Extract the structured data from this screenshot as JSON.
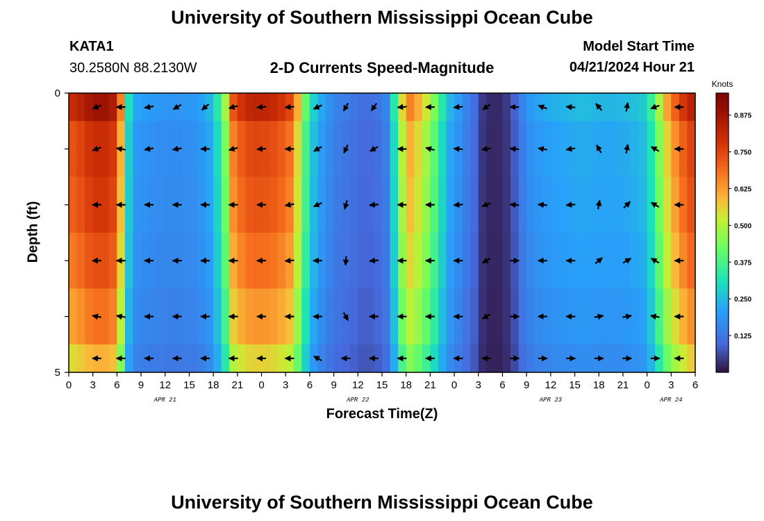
{
  "header": {
    "title": "University of Southern Mississippi Ocean Cube",
    "station": "KATA1",
    "location": "30.2580N  88.2130W",
    "subtitle": "2-D Currents Speed-Magnitude",
    "model_start_label": "Model Start Time",
    "model_start_value": "04/21/2024 Hour 21"
  },
  "footer": {
    "title": "University of Southern Mississippi Ocean Cube"
  },
  "chart_data": {
    "type": "heatmap",
    "title": "2-D Currents Speed-Magnitude",
    "xlabel": "Forecast Time(Z)",
    "ylabel": "Depth (ft)",
    "x_unit": "forecast hour from 04/21 00Z",
    "xlim": [
      0,
      78
    ],
    "ylim": [
      5,
      0
    ],
    "x_ticks": [
      {
        "hour": 0,
        "label": "0"
      },
      {
        "hour": 3,
        "label": "3"
      },
      {
        "hour": 6,
        "label": "6"
      },
      {
        "hour": 9,
        "label": "9"
      },
      {
        "hour": 12,
        "label": "12"
      },
      {
        "hour": 15,
        "label": "15"
      },
      {
        "hour": 18,
        "label": "18"
      },
      {
        "hour": 21,
        "label": "21"
      },
      {
        "hour": 24,
        "label": "0"
      },
      {
        "hour": 27,
        "label": "3"
      },
      {
        "hour": 30,
        "label": "6"
      },
      {
        "hour": 33,
        "label": "9"
      },
      {
        "hour": 36,
        "label": "12"
      },
      {
        "hour": 39,
        "label": "15"
      },
      {
        "hour": 42,
        "label": "18"
      },
      {
        "hour": 45,
        "label": "21"
      },
      {
        "hour": 48,
        "label": "0"
      },
      {
        "hour": 51,
        "label": "3"
      },
      {
        "hour": 54,
        "label": "6"
      },
      {
        "hour": 57,
        "label": "9"
      },
      {
        "hour": 60,
        "label": "12"
      },
      {
        "hour": 63,
        "label": "15"
      },
      {
        "hour": 66,
        "label": "18"
      },
      {
        "hour": 69,
        "label": "21"
      },
      {
        "hour": 72,
        "label": "0"
      },
      {
        "hour": 75,
        "label": "3"
      },
      {
        "hour": 78,
        "label": "6"
      }
    ],
    "y_ticks": [
      {
        "depth": 0,
        "label": "0"
      },
      {
        "depth": 1,
        "label": ""
      },
      {
        "depth": 2,
        "label": ""
      },
      {
        "depth": 3,
        "label": ""
      },
      {
        "depth": 4,
        "label": ""
      },
      {
        "depth": 5,
        "label": "5"
      }
    ],
    "date_labels": [
      {
        "hour": 12,
        "label": "APR 21"
      },
      {
        "hour": 36,
        "label": "APR 22"
      },
      {
        "hour": 60,
        "label": "APR 23"
      },
      {
        "hour": 75,
        "label": "APR 24"
      }
    ],
    "colorbar": {
      "label": "Knots",
      "min": 0.0,
      "max": 0.95,
      "ticks": [
        0.125,
        0.25,
        0.375,
        0.5,
        0.625,
        0.75,
        0.875
      ],
      "tick_labels": [
        "0.125",
        "0.250",
        "0.375",
        "0.500",
        "0.625",
        "0.750",
        "0.875"
      ]
    },
    "depth_levels": [
      0.25,
      1.0,
      2.0,
      3.0,
      4.0,
      4.75
    ],
    "speed_profile": {
      "hours": [
        0,
        1,
        3,
        5,
        6,
        6.5,
        7,
        7.5,
        8,
        10,
        12,
        14,
        16,
        17.5,
        18.5,
        19.5,
        20.5,
        22,
        24,
        26,
        27.5,
        28.5,
        29,
        30,
        31,
        33,
        35,
        36.5,
        37.5,
        38.5,
        39.5,
        40.5,
        41.5,
        42.5,
        43.5,
        45,
        46.5,
        47.5,
        48.5,
        49.5,
        50.5,
        51,
        51.5,
        52,
        53,
        54,
        55,
        55.5,
        56,
        57,
        58,
        60,
        62,
        64,
        66,
        68,
        70,
        71.5,
        72.5,
        73.5,
        74.5,
        76,
        78
      ],
      "speeds": [
        0.72,
        0.74,
        0.8,
        0.8,
        0.75,
        0.6,
        0.42,
        0.28,
        0.2,
        0.18,
        0.17,
        0.17,
        0.18,
        0.22,
        0.3,
        0.44,
        0.66,
        0.74,
        0.75,
        0.73,
        0.68,
        0.55,
        0.45,
        0.3,
        0.22,
        0.14,
        0.12,
        0.1,
        0.1,
        0.11,
        0.14,
        0.3,
        0.5,
        0.6,
        0.55,
        0.45,
        0.3,
        0.22,
        0.18,
        0.14,
        0.1,
        0.06,
        0.04,
        0.03,
        0.02,
        0.03,
        0.05,
        0.08,
        0.12,
        0.16,
        0.19,
        0.21,
        0.22,
        0.23,
        0.22,
        0.22,
        0.23,
        0.25,
        0.32,
        0.44,
        0.56,
        0.68,
        0.78
      ]
    },
    "depth_factors": [
      1.1,
      1.0,
      0.97,
      0.92,
      0.85,
      0.75
    ],
    "arrow_hours": [
      3.5,
      6.5,
      10,
      13.5,
      17,
      20.5,
      24,
      27.5,
      31,
      34.5,
      38,
      41.5,
      45,
      48.5,
      52,
      55.5,
      59,
      62.5,
      66,
      69.5,
      73,
      76
    ],
    "arrow_rows": [
      [
        200,
        180,
        190,
        210,
        220,
        195,
        185,
        185,
        205,
        240,
        235,
        185,
        180,
        185,
        215,
        180,
        160,
        175,
        130,
        80,
        200,
        180
      ],
      [
        200,
        170,
        190,
        190,
        180,
        195,
        185,
        180,
        210,
        245,
        210,
        180,
        165,
        175,
        190,
        175,
        170,
        190,
        120,
        80,
        150,
        180
      ],
      [
        180,
        180,
        180,
        180,
        180,
        180,
        180,
        190,
        205,
        255,
        185,
        180,
        180,
        185,
        200,
        175,
        175,
        185,
        80,
        45,
        150,
        180
      ],
      [
        180,
        180,
        180,
        180,
        180,
        180,
        180,
        185,
        180,
        265,
        185,
        180,
        180,
        180,
        210,
        0,
        180,
        180,
        40,
        30,
        150,
        180
      ],
      [
        170,
        170,
        180,
        180,
        180,
        180,
        180,
        180,
        180,
        300,
        180,
        180,
        180,
        180,
        210,
        0,
        180,
        180,
        10,
        10,
        170,
        180
      ],
      [
        180,
        180,
        180,
        180,
        180,
        180,
        180,
        180,
        150,
        180,
        180,
        180,
        180,
        180,
        180,
        0,
        0,
        0,
        0,
        0,
        0,
        180
      ]
    ]
  }
}
